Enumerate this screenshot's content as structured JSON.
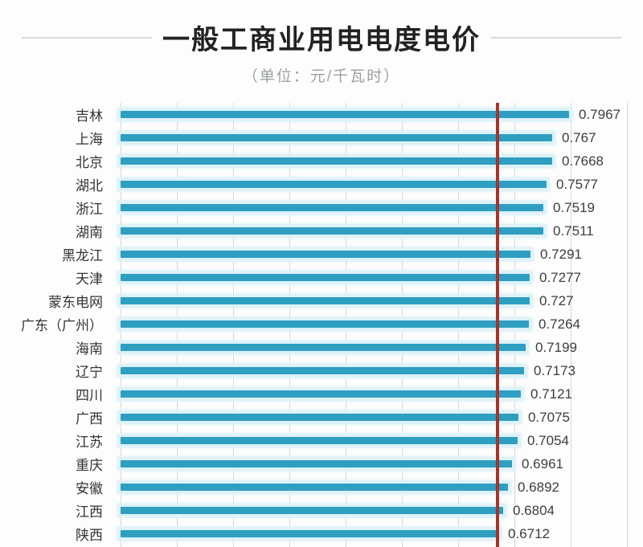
{
  "header": {
    "title": "一般工商业用电电度电价",
    "subtitle": "（单位：元/千瓦时）"
  },
  "chart_data": {
    "type": "bar",
    "orientation": "horizontal",
    "title": "一般工商业用电电度电价",
    "subtitle_unit": "（单位：元/千瓦时）",
    "unit": "元/千瓦时",
    "categories": [
      "吉林",
      "上海",
      "北京",
      "湖北",
      "浙江",
      "湖南",
      "黑龙江",
      "天津",
      "蒙东电网",
      "广东（广州）",
      "海南",
      "辽宁",
      "四川",
      "广西",
      "江苏",
      "重庆",
      "安徽",
      "江西",
      "陕西"
    ],
    "values": [
      0.7967,
      0.767,
      0.7668,
      0.7577,
      0.7519,
      0.7511,
      0.7291,
      0.7277,
      0.727,
      0.7264,
      0.7199,
      0.7173,
      0.7121,
      0.7075,
      0.7054,
      0.6961,
      0.6892,
      0.6804,
      0.6712
    ],
    "value_labels": [
      "0.7967",
      "0.767",
      "0.7668",
      "0.7577",
      "0.7519",
      "0.7511",
      "0.7291",
      "0.7277",
      "0.727",
      "0.7264",
      "0.7199",
      "0.7173",
      "0.7121",
      "0.7075",
      "0.7054",
      "0.6961",
      "0.6892",
      "0.6804",
      "0.6712"
    ],
    "xlim": [
      0,
      0.9
    ],
    "gridline_interval": 0.1,
    "grid": true,
    "legend": "none",
    "reference_line": {
      "value": 0.667,
      "color": "#a93228"
    },
    "bar_color": "#2e9ec1",
    "bar_glow_color": "#ddf2f9",
    "gridline_color": "#d6d6d6"
  }
}
